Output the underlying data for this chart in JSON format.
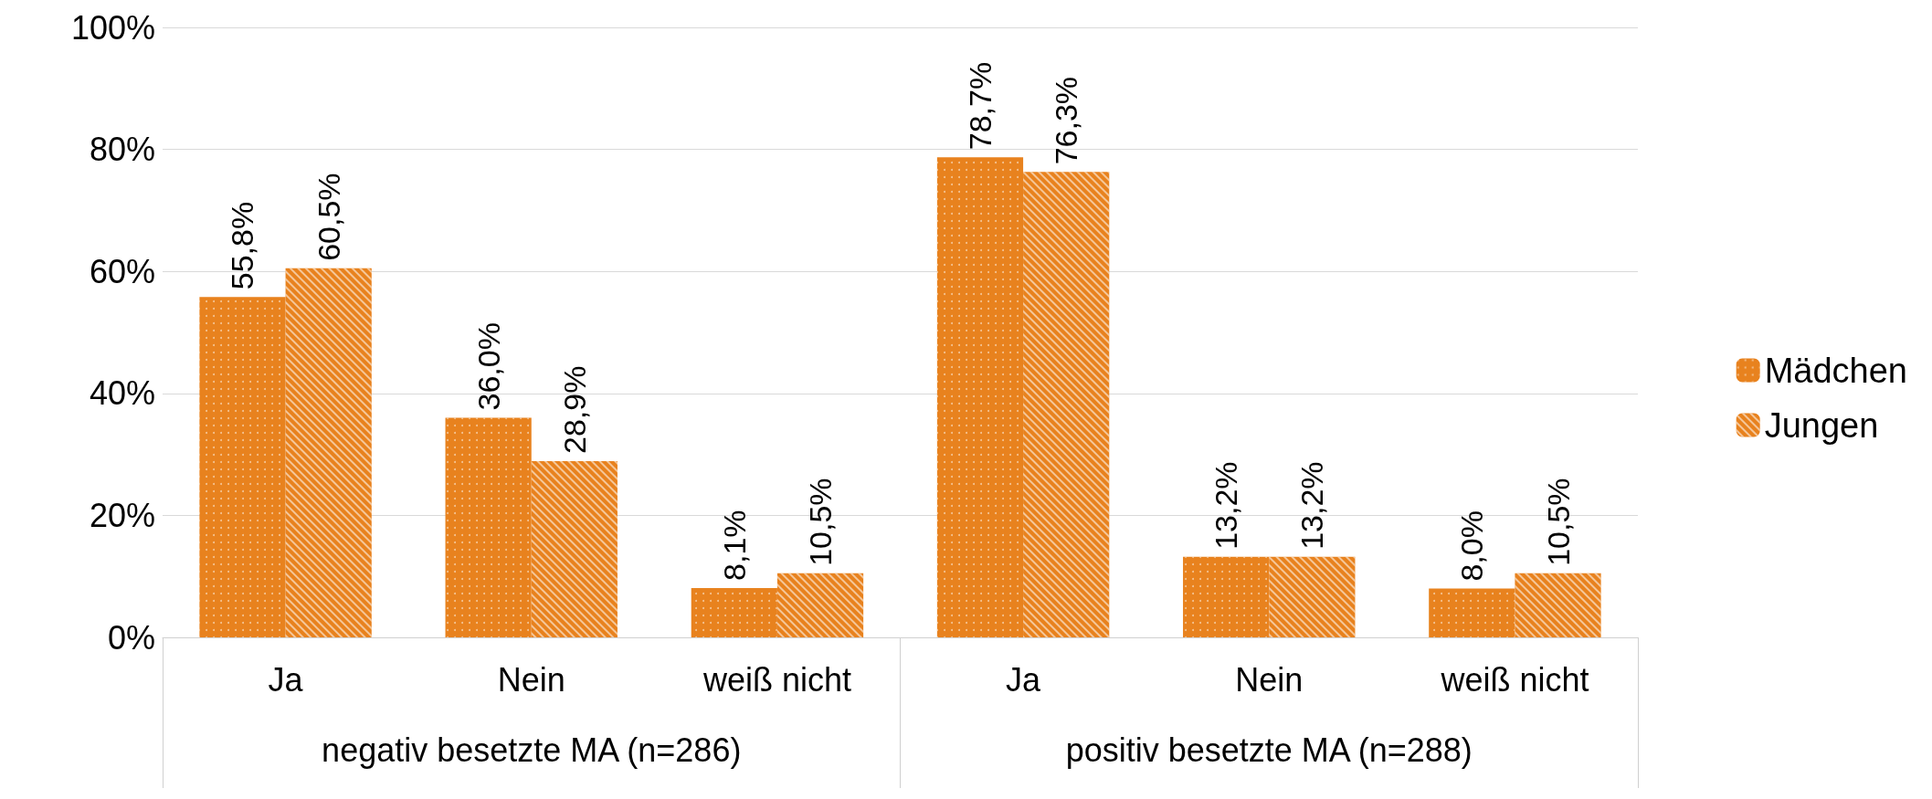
{
  "chart_data": {
    "type": "bar",
    "categories": [
      "Ja",
      "Nein",
      "weiß nicht",
      "Ja",
      "Nein",
      "weiß nicht"
    ],
    "series": [
      {
        "name": "Mädchen",
        "color": "#e8821e",
        "values": [
          55.8,
          36.0,
          8.1,
          78.7,
          13.2,
          8.0
        ],
        "value_labels": [
          "55,8%",
          "36,0%",
          "8,1%",
          "78,7%",
          "13,2%",
          "8,0%"
        ]
      },
      {
        "name": "Jungen",
        "color": "#e8821e",
        "values": [
          60.5,
          28.9,
          10.5,
          76.3,
          13.2,
          10.5
        ],
        "value_labels": [
          "60,5%",
          "28,9%",
          "10,5%",
          "76,3%",
          "13,2%",
          "10,5%"
        ]
      }
    ],
    "annotations": [
      "negativ besetzte MA (n=286)",
      "positiv besetzte MA (n=288)"
    ],
    "ylim": [
      0,
      100
    ],
    "yticks": [
      {
        "value": 0,
        "label": "0%"
      },
      {
        "value": 20,
        "label": "20%"
      },
      {
        "value": 40,
        "label": "40%"
      },
      {
        "value": 60,
        "label": "60%"
      },
      {
        "value": 80,
        "label": "80%"
      },
      {
        "value": 100,
        "label": "100%"
      }
    ],
    "grid": "y",
    "legend": "right"
  }
}
